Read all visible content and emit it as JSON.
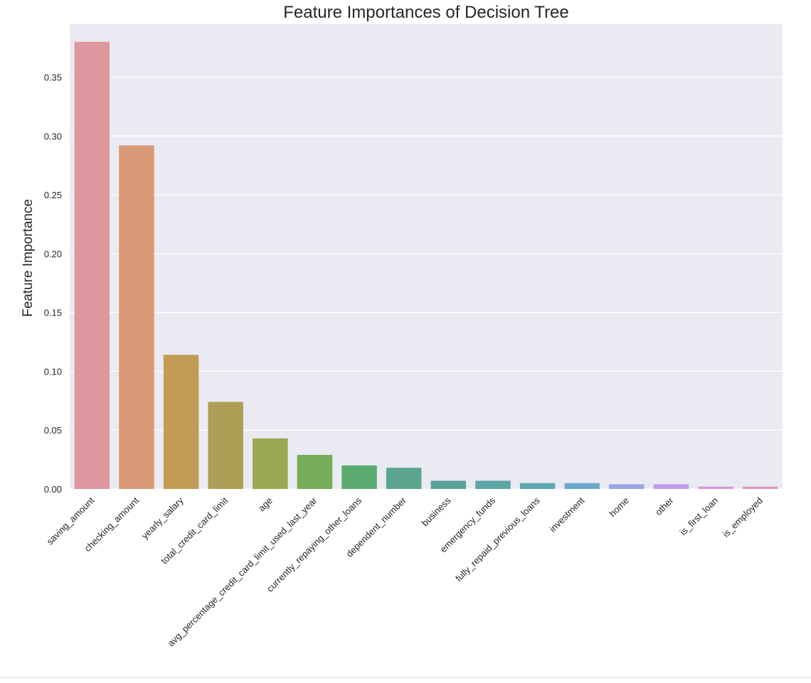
{
  "chart_data": {
    "type": "bar",
    "title": "Feature Importances of Decision Tree",
    "xlabel": "",
    "ylabel": "Feature Importance",
    "ylim": [
      0,
      0.395
    ],
    "yticks": [
      "0.00",
      "0.05",
      "0.10",
      "0.15",
      "0.20",
      "0.25",
      "0.30",
      "0.35"
    ],
    "grid": true,
    "background": "#eaeaf2",
    "categories": [
      "saving_amount",
      "checking_amount",
      "yearly_salary",
      "total_credit_card_limit",
      "age",
      "avg_percentage_credit_card_limit_used_last_year",
      "currently_repaying_other_loans",
      "dependent_number",
      "business",
      "emergency_funds",
      "fully_repaid_previous_loans",
      "investment",
      "home",
      "other",
      "is_first_loan",
      "is_employed"
    ],
    "values": [
      0.38,
      0.292,
      0.114,
      0.074,
      0.043,
      0.029,
      0.02,
      0.018,
      0.007,
      0.007,
      0.005,
      0.005,
      0.004,
      0.004,
      0.002,
      0.002
    ],
    "colors": [
      "#e0979f",
      "#d99a77",
      "#c29b55",
      "#ad9f55",
      "#9ca853",
      "#75ad59",
      "#5aab70",
      "#5ba58f",
      "#5ba39a",
      "#5da6a6",
      "#5ea7b2",
      "#6aa9cc",
      "#9aa6e4",
      "#c09ce6",
      "#da95dd",
      "#e197c3"
    ]
  }
}
